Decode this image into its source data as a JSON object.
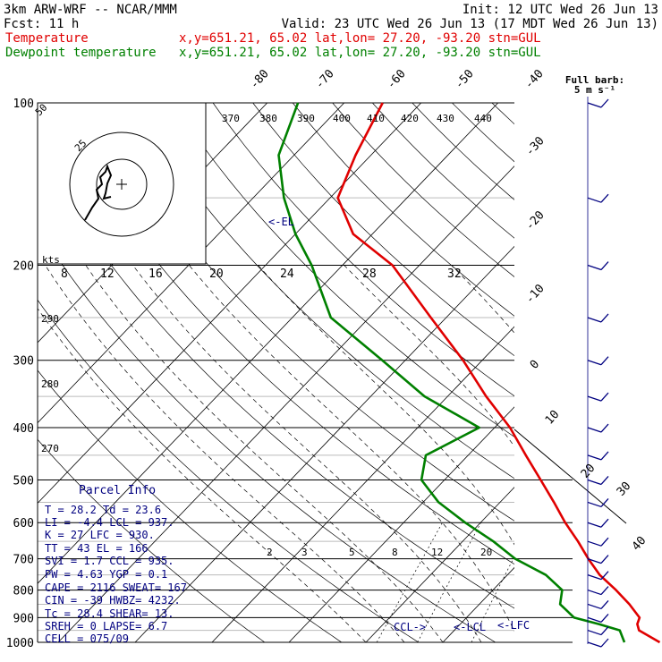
{
  "header": {
    "model": "3km ARW-WRF -- NCAR/MMM",
    "init": "Init: 12 UTC Wed 26 Jun 13",
    "fcst": "Fcst:    11 h",
    "valid": "Valid: 23 UTC Wed 26 Jun 13 (17 MDT Wed 26 Jun 13)",
    "legend": [
      {
        "name": "Temperature",
        "info": "x,y=651.21, 65.02   lat,lon= 27.20, -93.20  stn=GUL",
        "color": "#e00000"
      },
      {
        "name": "Dewpoint temperature",
        "info": "x,y=651.21, 65.02   lat,lon= 27.20, -93.20  stn=GUL",
        "color": "#008000"
      }
    ]
  },
  "barb_header": {
    "line1": "Full barb:",
    "line2": "5 m s⁻¹"
  },
  "hodograph": {
    "units": "kts",
    "speed_labels": [
      "8",
      "12",
      "16",
      "20",
      "24",
      "28",
      "32"
    ],
    "ring_labels": [
      "50",
      "25"
    ]
  },
  "annotations": {
    "el": "<-EL",
    "ccl": "CCL->",
    "lcl": "<-LCL",
    "lfc": "<-LFC",
    "theta_labels": [
      "290",
      "280",
      "270"
    ],
    "theta_e_labels": [
      "370",
      "380",
      "390",
      "400",
      "410",
      "420",
      "430",
      "440"
    ],
    "mixing_ratio_labels": [
      "2",
      "3",
      "5",
      "8",
      "12",
      "20"
    ]
  },
  "parcel_info": {
    "title": "Parcel Info",
    "rows": [
      "T   =   28.2  Td  =  23.6",
      "LI  =   -4.4  LCL =  937.",
      "K   =     27  LFC =  930.",
      "TT  =     43  EL  =   166",
      "SVI =    1.7  CCL =  935.",
      "PW  =   4.63  YGP =   0.1",
      "CAPE =  2116  SWEAT=  167",
      "CIN  =   -39  HWBZ= 4232.",
      "Tc  =   28.4  SHEAR=  13.",
      "SREH =     0  LAPSE=  6.7",
      "CELL = 075/09"
    ]
  },
  "chart_data": {
    "type": "line",
    "title": "",
    "ylabel": "",
    "y_scale": "log (pressure, hPa)",
    "pressure_levels": [
      100,
      200,
      300,
      400,
      500,
      600,
      700,
      800,
      900,
      1000
    ],
    "isotherm_labels": [
      -80,
      -70,
      -60,
      -50,
      -40,
      -30,
      -20,
      -10,
      0,
      10,
      20,
      30,
      40
    ],
    "series": [
      {
        "name": "Temperature",
        "color": "#e00000",
        "points": [
          [
            1000,
            28.2
          ],
          [
            950,
            24.0
          ],
          [
            925,
            23.0
          ],
          [
            900,
            22.5
          ],
          [
            850,
            19.5
          ],
          [
            800,
            16.0
          ],
          [
            750,
            12.0
          ],
          [
            700,
            8.5
          ],
          [
            650,
            5.0
          ],
          [
            600,
            1.0
          ],
          [
            550,
            -3.0
          ],
          [
            500,
            -7.5
          ],
          [
            450,
            -12.5
          ],
          [
            400,
            -18.0
          ],
          [
            350,
            -25.0
          ],
          [
            300,
            -32.5
          ],
          [
            250,
            -42.0
          ],
          [
            200,
            -53.5
          ],
          [
            175,
            -62.5
          ],
          [
            150,
            -69.0
          ],
          [
            125,
            -72.0
          ],
          [
            100,
            -75.0
          ]
        ]
      },
      {
        "name": "Dewpoint temperature",
        "color": "#008000",
        "points": [
          [
            1000,
            23.6
          ],
          [
            950,
            21.5
          ],
          [
            925,
            18.0
          ],
          [
            900,
            14.0
          ],
          [
            850,
            10.5
          ],
          [
            800,
            9.0
          ],
          [
            750,
            5.0
          ],
          [
            700,
            -1.0
          ],
          [
            650,
            -6.0
          ],
          [
            600,
            -12.0
          ],
          [
            550,
            -18.0
          ],
          [
            500,
            -23.0
          ],
          [
            450,
            -25.5
          ],
          [
            400,
            -22.0
          ],
          [
            350,
            -33.0
          ],
          [
            300,
            -43.0
          ],
          [
            250,
            -55.0
          ],
          [
            200,
            -64.0
          ],
          [
            175,
            -70.0
          ],
          [
            150,
            -76.0
          ],
          [
            125,
            -82.0
          ],
          [
            100,
            -86.0
          ]
        ]
      }
    ],
    "wind_barbs_pressure": [
      100,
      150,
      200,
      250,
      300,
      350,
      400,
      450,
      500,
      550,
      600,
      650,
      700,
      750,
      800,
      850,
      900,
      950,
      1000
    ]
  }
}
